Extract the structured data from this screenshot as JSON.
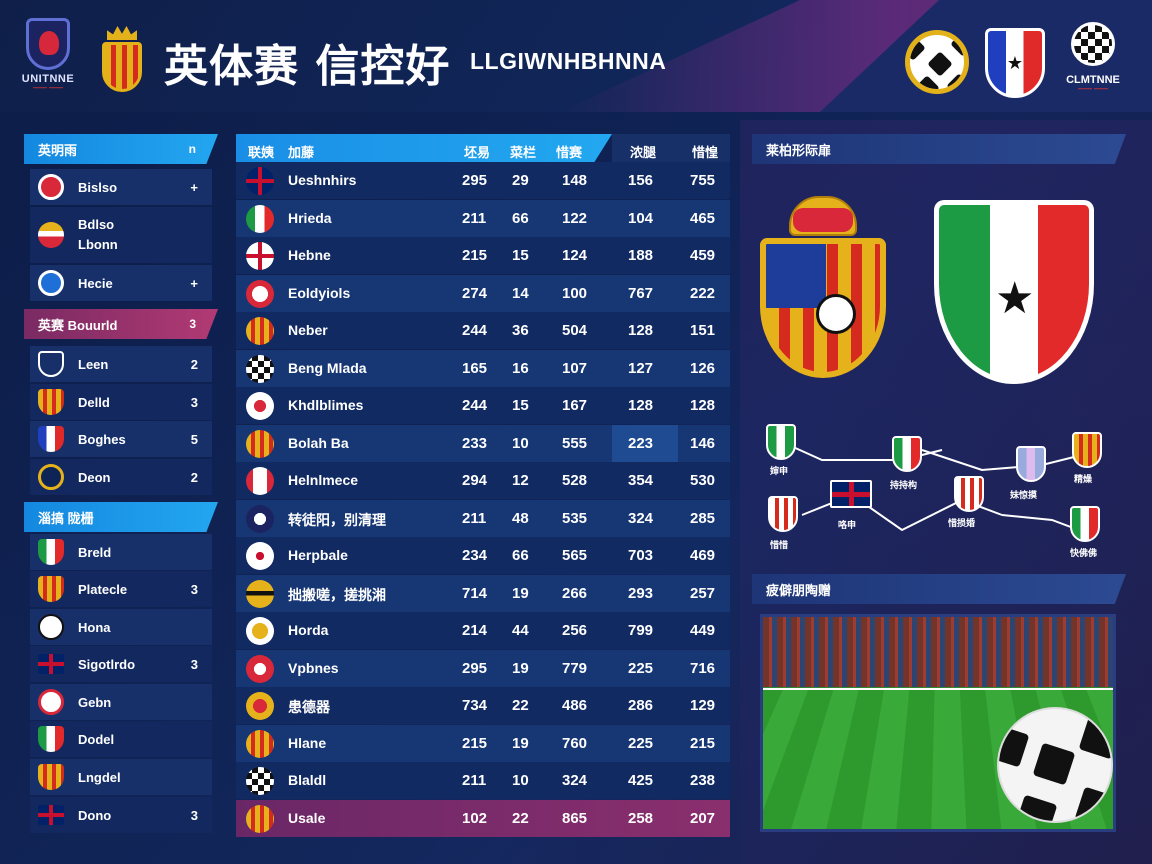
{
  "header": {
    "logo_text": "UNITNNE",
    "title_cn": "英体赛 信控好",
    "title_en": "LLGIWNHBHNNA",
    "logo_right_text": "CLMTNNE"
  },
  "sidebar": {
    "panels": [
      {
        "header": "英明雨",
        "header_right": "n",
        "style": "blue",
        "items": [
          {
            "label": "Bislso",
            "num": "+"
          },
          {
            "label": "Bdlso\nLbonn",
            "num": ""
          },
          {
            "label": "Hecie",
            "num": "+"
          }
        ]
      },
      {
        "header": "英赛 Bouurld",
        "header_right": "3",
        "style": "pink",
        "items": [
          {
            "label": "Leen",
            "num": "2"
          },
          {
            "label": "Delld",
            "num": "3"
          },
          {
            "label": "Boghes",
            "num": "5"
          },
          {
            "label": "Deon",
            "num": "2"
          }
        ]
      },
      {
        "header": "淄搞  陇栅",
        "header_right": "",
        "style": "blue",
        "items": [
          {
            "label": "Breld",
            "num": ""
          },
          {
            "label": "Platecle",
            "num": "3"
          },
          {
            "label": "Hona",
            "num": ""
          },
          {
            "label": "Sigotlrdo",
            "num": "3"
          },
          {
            "label": "Gebn",
            "num": ""
          },
          {
            "label": "Dodel",
            "num": ""
          },
          {
            "label": "Lngdel",
            "num": ""
          },
          {
            "label": "Dono",
            "num": "3"
          }
        ]
      }
    ]
  },
  "table": {
    "headers": [
      "联姨",
      "加藤",
      "坯易",
      "菜栏",
      "惜赛",
      "浓腿",
      "惜惶"
    ],
    "rows": [
      {
        "team": "Ueshnhirs",
        "c1": "295",
        "c2": "29",
        "c3": "148",
        "c4": "156",
        "c5": "755"
      },
      {
        "team": "Hrieda",
        "c1": "211",
        "c2": "66",
        "c3": "122",
        "c4": "104",
        "c5": "465"
      },
      {
        "team": "Hebne",
        "c1": "215",
        "c2": "15",
        "c3": "124",
        "c4": "188",
        "c5": "459"
      },
      {
        "team": "Eoldyiols",
        "c1": "274",
        "c2": "14",
        "c3": "100",
        "c4": "767",
        "c5": "222"
      },
      {
        "team": "Neber",
        "c1": "244",
        "c2": "36",
        "c3": "504",
        "c4": "128",
        "c5": "151"
      },
      {
        "team": "Beng Mlada",
        "c1": "165",
        "c2": "16",
        "c3": "107",
        "c4": "127",
        "c5": "126"
      },
      {
        "team": "Khdlblimes",
        "c1": "244",
        "c2": "15",
        "c3": "167",
        "c4": "128",
        "c5": "128"
      },
      {
        "team": "Bolah Ba",
        "c1": "233",
        "c2": "10",
        "c3": "555",
        "c4": "223",
        "c5": "146"
      },
      {
        "team": "Helnlmece",
        "c1": "294",
        "c2": "12",
        "c3": "528",
        "c4": "354",
        "c5": "530"
      },
      {
        "team": "转徒阳，别清理",
        "c1": "211",
        "c2": "48",
        "c3": "535",
        "c4": "324",
        "c5": "285"
      },
      {
        "team": "Herpbale",
        "c1": "234",
        "c2": "66",
        "c3": "565",
        "c4": "703",
        "c5": "469"
      },
      {
        "team": "拙搬嗟，搓挑湘",
        "c1": "714",
        "c2": "19",
        "c3": "266",
        "c4": "293",
        "c5": "257"
      },
      {
        "team": "Horda",
        "c1": "214",
        "c2": "44",
        "c3": "256",
        "c4": "799",
        "c5": "449"
      },
      {
        "team": "Vpbnes",
        "c1": "295",
        "c2": "19",
        "c3": "779",
        "c4": "225",
        "c5": "716"
      },
      {
        "team": "患德器",
        "c1": "734",
        "c2": "22",
        "c3": "486",
        "c4": "286",
        "c5": "129"
      },
      {
        "team": "Hlane",
        "c1": "215",
        "c2": "19",
        "c3": "760",
        "c4": "225",
        "c5": "215"
      },
      {
        "team": "Blaldl",
        "c1": "211",
        "c2": "10",
        "c3": "324",
        "c4": "425",
        "c5": "238"
      },
      {
        "team": "Usale",
        "c1": "102",
        "c2": "22",
        "c3": "865",
        "c4": "258",
        "c5": "207"
      }
    ]
  },
  "right": {
    "top_header": "莱柏形际扉",
    "bottom_header": "疲僻朋陶赠",
    "bracket_labels": [
      "婶申",
      "持持构",
      "妹惊摸",
      "精燥",
      "惜惜",
      "咯申",
      "惜损婚",
      "快佛佛"
    ]
  },
  "colors": {
    "accent_blue": "#1a8ee6",
    "accent_pink": "#b23a74",
    "bg_dark": "#0f1f4a"
  }
}
